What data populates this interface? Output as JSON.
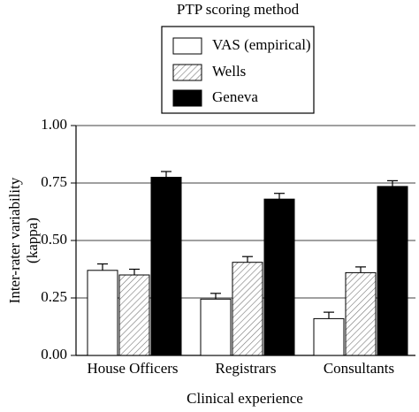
{
  "chart_data": {
    "type": "bar",
    "legend_title": "PTP scoring method",
    "xlabel": "Clinical experience",
    "ylabel": [
      "Inter-rater variability",
      "(kappa)"
    ],
    "categories": [
      "House Officers",
      "Registrars",
      "Consultants"
    ],
    "series": [
      {
        "name": "VAS (empirical)",
        "color": "#ffffff",
        "values": [
          0.37,
          0.245,
          0.16
        ],
        "errors": [
          0.028,
          0.025,
          0.028
        ]
      },
      {
        "name": "Wells",
        "color": "#ffffff",
        "hatch": true,
        "values": [
          0.35,
          0.405,
          0.36
        ],
        "errors": [
          0.025,
          0.025,
          0.025
        ]
      },
      {
        "name": "Geneva",
        "color": "#000000",
        "values": [
          0.775,
          0.68,
          0.735
        ],
        "errors": [
          0.025,
          0.025,
          0.025
        ]
      }
    ],
    "ylim": [
      0,
      1
    ],
    "yticks": [
      {
        "value": 0,
        "label": "0.00"
      },
      0.25,
      {
        "value": 0.5,
        "label": "0.50"
      },
      0.75,
      {
        "value": 1,
        "label": "1.00"
      }
    ],
    "grid": true
  }
}
